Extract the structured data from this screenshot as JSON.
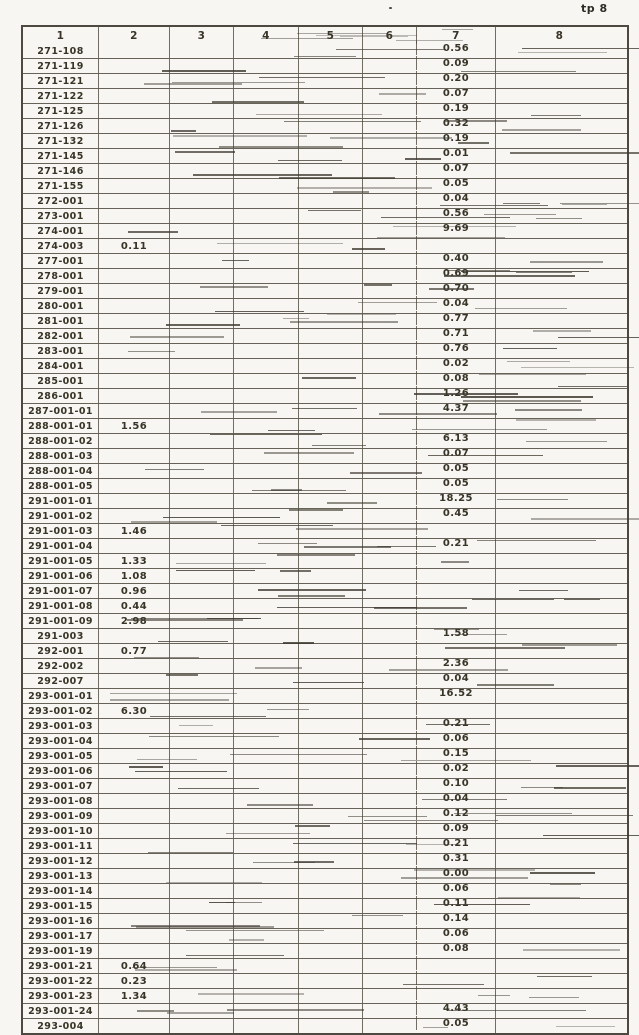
{
  "page": {
    "corner_label": "tp 8"
  },
  "table": {
    "headers": [
      "1",
      "2",
      "3",
      "4",
      "5",
      "6",
      "7",
      "8"
    ],
    "rows": [
      {
        "id": "271-108",
        "c2": "",
        "c7": "0.56"
      },
      {
        "id": "271-119",
        "c2": "",
        "c7": "0.09"
      },
      {
        "id": "271-121",
        "c2": "",
        "c7": "0.20"
      },
      {
        "id": "271-122",
        "c2": "",
        "c7": "0.07"
      },
      {
        "id": "271-125",
        "c2": "",
        "c7": "0.19"
      },
      {
        "id": "271-126",
        "c2": "",
        "c7": "0.32"
      },
      {
        "id": "271-132",
        "c2": "",
        "c7": "0.19"
      },
      {
        "id": "271-145",
        "c2": "",
        "c7": "0.01"
      },
      {
        "id": "271-146",
        "c2": "",
        "c7": "0.07"
      },
      {
        "id": "271-155",
        "c2": "",
        "c7": "0.05"
      },
      {
        "id": "272-001",
        "c2": "",
        "c7": "0.04"
      },
      {
        "id": "273-001",
        "c2": "",
        "c7": "0.56"
      },
      {
        "id": "274-001",
        "c2": "",
        "c7": "9.69"
      },
      {
        "id": "274-003",
        "c2": "0.11",
        "c7": ""
      },
      {
        "id": "277-001",
        "c2": "",
        "c7": "0.40"
      },
      {
        "id": "278-001",
        "c2": "",
        "c7": "0.69"
      },
      {
        "id": "279-001",
        "c2": "",
        "c7": "0.70"
      },
      {
        "id": "280-001",
        "c2": "",
        "c7": "0.04"
      },
      {
        "id": "281-001",
        "c2": "",
        "c7": "0.77"
      },
      {
        "id": "282-001",
        "c2": "",
        "c7": "0.71"
      },
      {
        "id": "283-001",
        "c2": "",
        "c7": "0.76"
      },
      {
        "id": "284-001",
        "c2": "",
        "c7": "0.02"
      },
      {
        "id": "285-001",
        "c2": "",
        "c7": "0.08"
      },
      {
        "id": "286-001",
        "c2": "",
        "c7": "1.26"
      },
      {
        "id": "287-001-01",
        "c2": "",
        "c7": "4.37"
      },
      {
        "id": "288-001-01",
        "c2": "1.56",
        "c7": ""
      },
      {
        "id": "288-001-02",
        "c2": "",
        "c7": "6.13"
      },
      {
        "id": "288-001-03",
        "c2": "",
        "c7": "0.07"
      },
      {
        "id": "288-001-04",
        "c2": "",
        "c7": "0.05"
      },
      {
        "id": "288-001-05",
        "c2": "",
        "c7": "0.05"
      },
      {
        "id": "291-001-01",
        "c2": "",
        "c7": "18.25"
      },
      {
        "id": "291-001-02",
        "c2": "",
        "c7": "0.45"
      },
      {
        "id": "291-001-03",
        "c2": "1.46",
        "c7": ""
      },
      {
        "id": "291-001-04",
        "c2": "",
        "c7": "0.21"
      },
      {
        "id": "291-001-05",
        "c2": "1.33",
        "c7": ""
      },
      {
        "id": "291-001-06",
        "c2": "1.08",
        "c7": ""
      },
      {
        "id": "291-001-07",
        "c2": "0.96",
        "c7": ""
      },
      {
        "id": "291-001-08",
        "c2": "0.44",
        "c7": ""
      },
      {
        "id": "291-001-09",
        "c2": "2.98",
        "c7": ""
      },
      {
        "id": "291-003",
        "c2": "",
        "c7": "1.58"
      },
      {
        "id": "292-001",
        "c2": "0.77",
        "c7": ""
      },
      {
        "id": "292-002",
        "c2": "",
        "c7": "2.36"
      },
      {
        "id": "292-007",
        "c2": "",
        "c7": "0.04"
      },
      {
        "id": "293-001-01",
        "c2": "",
        "c7": "16.52"
      },
      {
        "id": "293-001-02",
        "c2": "6.30",
        "c7": ""
      },
      {
        "id": "293-001-03",
        "c2": "",
        "c7": "0.21"
      },
      {
        "id": "293-001-04",
        "c2": "",
        "c7": "0.06"
      },
      {
        "id": "293-001-05",
        "c2": "",
        "c7": "0.15"
      },
      {
        "id": "293-001-06",
        "c2": "",
        "c7": "0.02"
      },
      {
        "id": "293-001-07",
        "c2": "",
        "c7": "0.10"
      },
      {
        "id": "293-001-08",
        "c2": "",
        "c7": "0.04"
      },
      {
        "id": "293-001-09",
        "c2": "",
        "c7": "0.12"
      },
      {
        "id": "293-001-10",
        "c2": "",
        "c7": "0.09"
      },
      {
        "id": "293-001-11",
        "c2": "",
        "c7": "0.21"
      },
      {
        "id": "293-001-12",
        "c2": "",
        "c7": "0.31"
      },
      {
        "id": "293-001-13",
        "c2": "",
        "c7": "0.00"
      },
      {
        "id": "293-001-14",
        "c2": "",
        "c7": "0.06"
      },
      {
        "id": "293-001-15",
        "c2": "",
        "c7": "0.11"
      },
      {
        "id": "293-001-16",
        "c2": "",
        "c7": "0.14"
      },
      {
        "id": "293-001-17",
        "c2": "",
        "c7": "0.06"
      },
      {
        "id": "293-001-19",
        "c2": "",
        "c7": "0.08"
      },
      {
        "id": "293-001-21",
        "c2": "0.64",
        "c7": ""
      },
      {
        "id": "293-001-22",
        "c2": "0.23",
        "c7": ""
      },
      {
        "id": "293-001-23",
        "c2": "1.34",
        "c7": ""
      },
      {
        "id": "293-001-24",
        "c2": "",
        "c7": "4.43"
      },
      {
        "id": "293-004",
        "c2": "",
        "c7": "0.05"
      }
    ]
  }
}
